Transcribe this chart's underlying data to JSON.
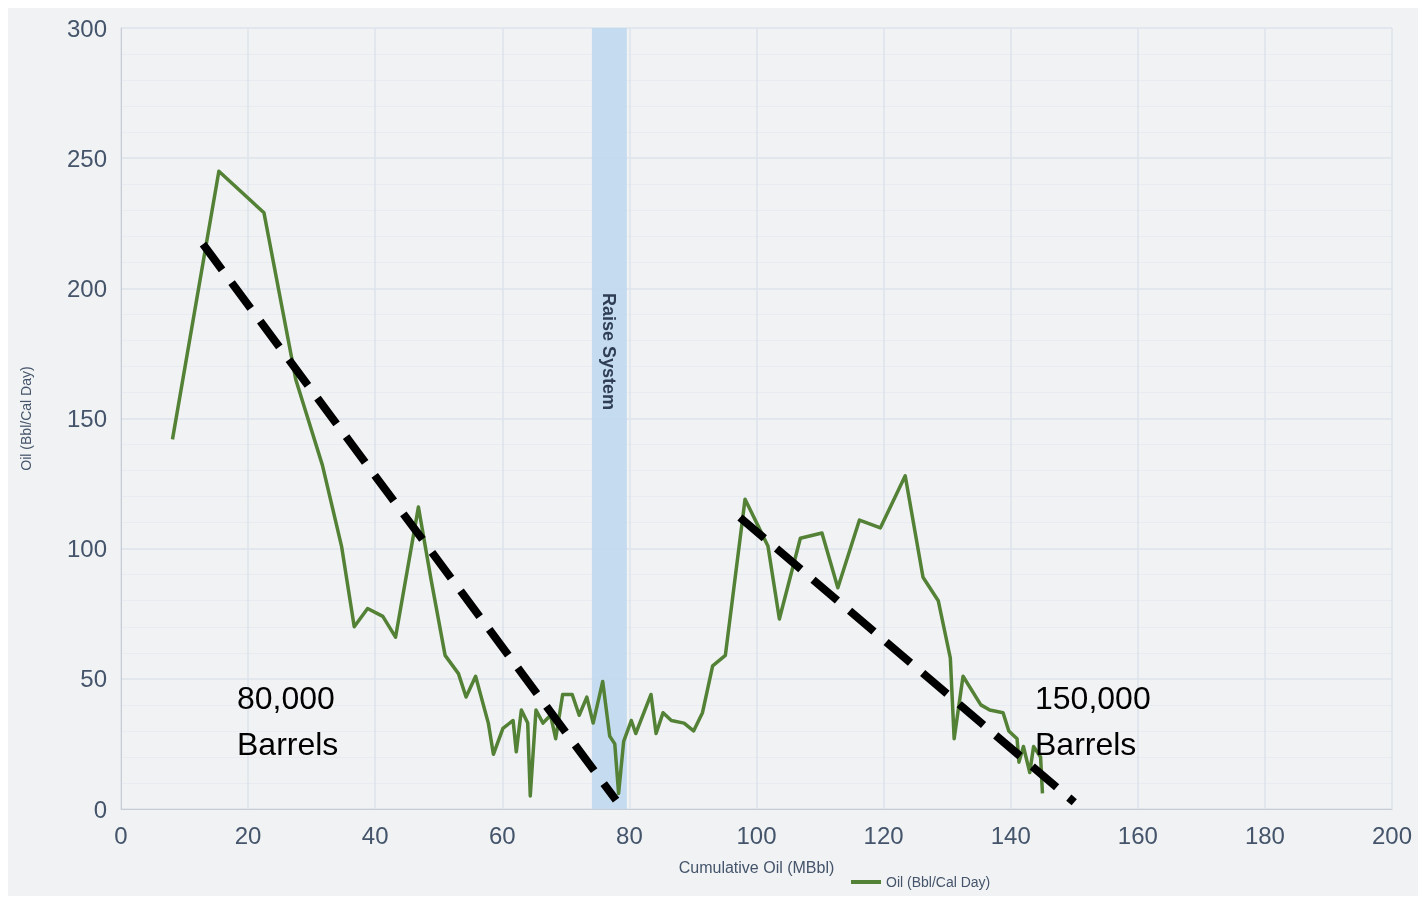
{
  "chart_data": {
    "type": "line",
    "xlabel": "Cumulative Oil (MBbl)",
    "ylabel": "Oil (Bbl/Cal Day)",
    "xlim": [
      0,
      200
    ],
    "xticks": [
      0,
      20,
      40,
      60,
      80,
      100,
      120,
      140,
      160,
      180,
      200
    ],
    "ylim": [
      0,
      300
    ],
    "yticks": [
      0,
      50,
      100,
      150,
      200,
      250,
      300
    ],
    "grid": true,
    "legend": "bottom",
    "marker": "none",
    "series": [
      {
        "name": "Oil (Bbl/Cal Day)",
        "color": "#538135",
        "x": [
          8.1,
          15.4,
          22.5,
          27.5,
          31.7,
          34.7,
          36.7,
          38.8,
          41.2,
          43.2,
          46.8,
          48.8,
          51,
          53.1,
          54.3,
          55.8,
          57.8,
          58.6,
          60.1,
          61.7,
          62.2,
          63,
          64,
          64.4,
          65.3,
          66.4,
          67.6,
          68.4,
          69.5,
          71,
          72.1,
          73.3,
          74.3,
          75.8,
          76.9,
          77.7,
          78.3,
          79.1,
          80.3,
          81,
          83.4,
          84.2,
          85.3,
          86.6,
          88.6,
          90.1,
          91.5,
          93.1,
          95.1,
          98.2,
          101.8,
          103.6,
          106.9,
          110.3,
          112.8,
          116.2,
          119.5,
          123.4,
          126.2,
          128.6,
          130.5,
          131.1,
          132.5,
          135.3,
          136.7,
          138.8,
          139.7,
          141,
          141.3,
          142,
          143,
          143.6,
          144.7,
          145
        ],
        "values": [
          142,
          245,
          229,
          165,
          132,
          101,
          70,
          77,
          74,
          66,
          116,
          88,
          59,
          52,
          43,
          51,
          33,
          21,
          31,
          34,
          22,
          38,
          33,
          5,
          38,
          33,
          36,
          27,
          44,
          44,
          36,
          43,
          33,
          49,
          28,
          25,
          6,
          26,
          34,
          29,
          44,
          29,
          37,
          34,
          33,
          30,
          37,
          55,
          59,
          119,
          101,
          73,
          104,
          106,
          85,
          111,
          108,
          128,
          89,
          80,
          58,
          27,
          51,
          40,
          38,
          37,
          30,
          27,
          18,
          24,
          14,
          24,
          20,
          6
        ]
      },
      {
        "type": "line",
        "color": "#000000",
        "line_style": "dashed",
        "x": [
          12.9,
          77.9
        ],
        "values": [
          217,
          3.4
        ]
      },
      {
        "type": "line",
        "color": "#000000",
        "line_style": "dashed",
        "x": [
          97.4,
          150
        ],
        "values": [
          112,
          2.6
        ]
      }
    ],
    "bands": [
      {
        "axis": "x",
        "from": 74.1,
        "to": 79.6,
        "label": "Raise System",
        "color": "#bdd7ee"
      }
    ],
    "annotations": [
      "80,000 Barrels",
      "150,000 Barrels"
    ]
  }
}
